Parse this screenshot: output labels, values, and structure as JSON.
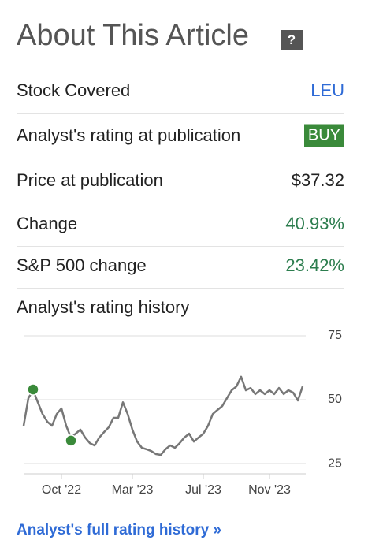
{
  "header": {
    "title": "About This Article",
    "help": "?"
  },
  "rows": [
    {
      "label": "Stock Covered",
      "value": "LEU"
    },
    {
      "label": "Analyst's rating at publication",
      "value": "BUY"
    },
    {
      "label": "Price at publication",
      "value": "$37.32"
    },
    {
      "label": "Change",
      "value": "40.93%"
    },
    {
      "label": "S&P 500 change",
      "value": "23.42%"
    }
  ],
  "chart_data": {
    "type": "line",
    "title": "Analyst's rating history",
    "categories": [
      null,
      null,
      null,
      null,
      null,
      null,
      null,
      null,
      "Oct '22",
      null,
      null,
      null,
      null,
      null,
      null,
      null,
      null,
      null,
      null,
      null,
      null,
      null,
      null,
      "Mar '23",
      null,
      null,
      null,
      null,
      null,
      null,
      null,
      null,
      null,
      null,
      null,
      null,
      null,
      null,
      "Jul '23",
      null,
      null,
      null,
      null,
      null,
      null,
      null,
      null,
      null,
      null,
      null,
      null,
      null,
      "Nov '23",
      null,
      null,
      null,
      null,
      null,
      null,
      null
    ],
    "series": [
      {
        "color": "#777777",
        "values": [
          39.8,
          50.6,
          53.7,
          49,
          44.4,
          41.4,
          39.8,
          44.4,
          46.6,
          39.8,
          35.2,
          36.7,
          38.3,
          35.2,
          33,
          32.1,
          35.2,
          37.3,
          39.2,
          42.9,
          42.9,
          49,
          44.4,
          38.3,
          33.6,
          31.2,
          30.6,
          29.9,
          28.7,
          28.4,
          30.6,
          32.1,
          31.2,
          33,
          35.2,
          36.7,
          33.6,
          35.2,
          36.7,
          39.8,
          44.4,
          46,
          47.5,
          50.6,
          53.7,
          55.2,
          59,
          53.7,
          54.6,
          52.2,
          53.7,
          52.2,
          53.7,
          52.2,
          54.6,
          52.2,
          53.7,
          52.8,
          49.7,
          55.2
        ]
      },
      {
        "color": "#3a8a3a",
        "values": [
          null,
          null,
          54,
          null,
          null,
          null,
          null,
          null,
          null,
          null,
          34,
          null,
          null,
          null,
          null,
          null,
          null,
          null,
          null,
          null,
          null,
          null,
          null,
          null,
          null,
          null,
          null,
          null,
          null,
          null,
          null,
          null,
          null,
          null,
          null,
          null,
          null,
          null,
          null,
          null,
          null,
          null,
          null,
          null,
          null,
          null,
          null,
          null,
          null,
          null,
          null,
          null,
          null,
          null,
          null,
          null,
          null,
          null,
          null,
          null
        ]
      }
    ],
    "ylim": [
      21,
      75
    ],
    "yticks": [
      25,
      50,
      75
    ],
    "grid": true
  },
  "footer_link": "Analyst's full rating history »"
}
